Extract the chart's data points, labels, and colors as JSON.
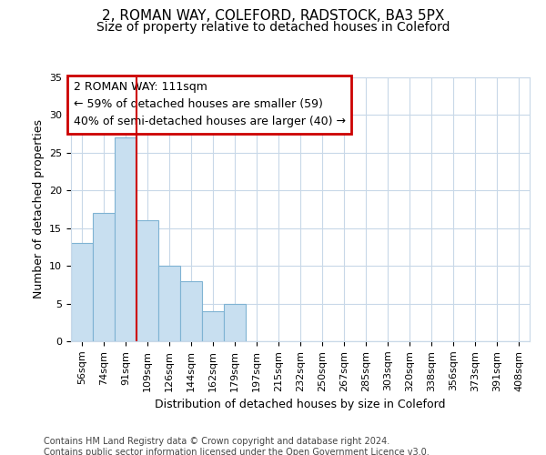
{
  "title1": "2, ROMAN WAY, COLEFORD, RADSTOCK, BA3 5PX",
  "title2": "Size of property relative to detached houses in Coleford",
  "xlabel": "Distribution of detached houses by size in Coleford",
  "ylabel": "Number of detached properties",
  "categories": [
    "56sqm",
    "74sqm",
    "91sqm",
    "109sqm",
    "126sqm",
    "144sqm",
    "162sqm",
    "179sqm",
    "197sqm",
    "215sqm",
    "232sqm",
    "250sqm",
    "267sqm",
    "285sqm",
    "303sqm",
    "320sqm",
    "338sqm",
    "356sqm",
    "373sqm",
    "391sqm",
    "408sqm"
  ],
  "values": [
    13,
    17,
    27,
    16,
    10,
    8,
    4,
    5,
    0,
    0,
    0,
    0,
    0,
    0,
    0,
    0,
    0,
    0,
    0,
    0,
    0
  ],
  "bar_color": "#c8dff0",
  "bar_edge_color": "#7fb3d3",
  "vline_color": "#cc0000",
  "vline_x_index": 3,
  "annotation_text_line1": "2 ROMAN WAY: 111sqm",
  "annotation_text_line2": "← 59% of detached houses are smaller (59)",
  "annotation_text_line3": "40% of semi-detached houses are larger (40) →",
  "annotation_box_color": "#cc0000",
  "ylim": [
    0,
    35
  ],
  "yticks": [
    0,
    5,
    10,
    15,
    20,
    25,
    30,
    35
  ],
  "grid_color": "#c8d8e8",
  "plot_bg_color": "#ffffff",
  "fig_bg_color": "#ffffff",
  "footer": "Contains HM Land Registry data © Crown copyright and database right 2024.\nContains public sector information licensed under the Open Government Licence v3.0.",
  "title1_fontsize": 11,
  "title2_fontsize": 10,
  "xlabel_fontsize": 9,
  "ylabel_fontsize": 9,
  "tick_fontsize": 8,
  "footer_fontsize": 7,
  "ann_fontsize": 9
}
